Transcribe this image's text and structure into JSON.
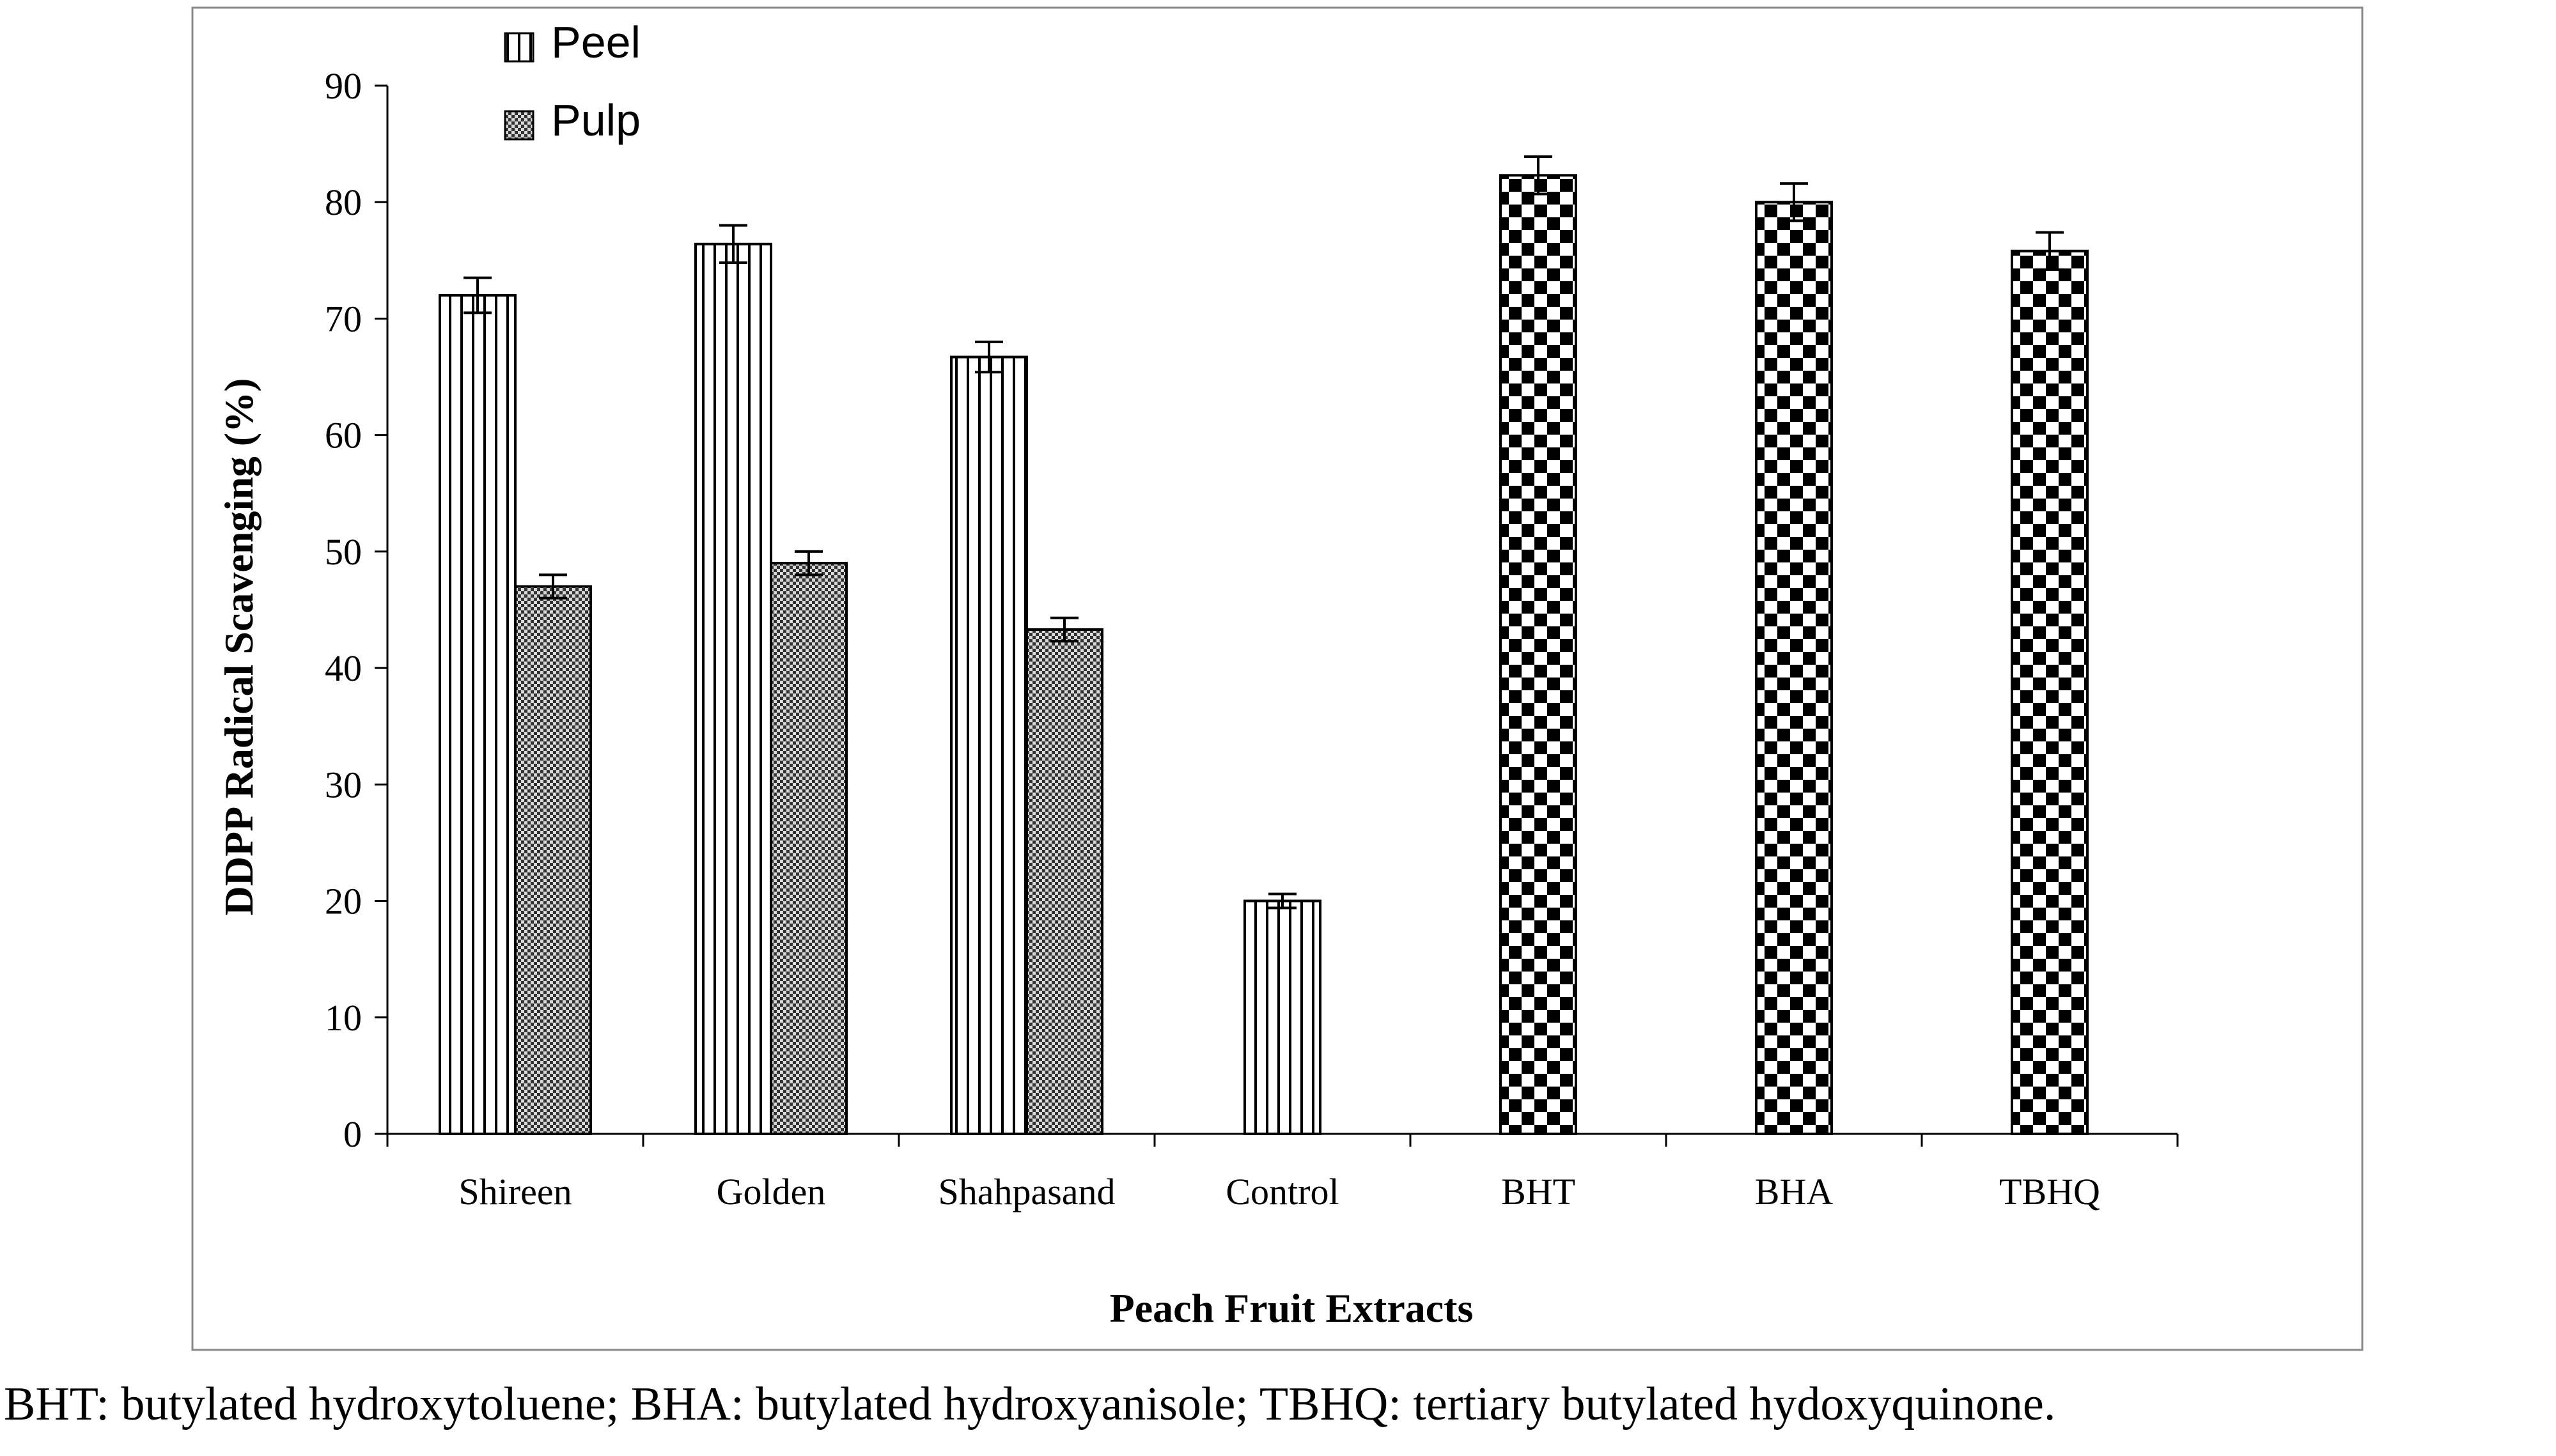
{
  "chart_data": {
    "type": "bar",
    "xlabel": "Peach Fruit Extracts",
    "ylabel": "DDPP Radical Scavenging (%)",
    "ylim": [
      0,
      90
    ],
    "yticks": [
      0,
      10,
      20,
      30,
      40,
      50,
      60,
      70,
      80,
      90
    ],
    "categories": [
      "Shireen",
      "Golden",
      "Shahpasand",
      "Control",
      "BHT",
      "BHA",
      "TBHQ"
    ],
    "series": [
      {
        "name": "Peel",
        "pattern": "vertical-stripes",
        "values": [
          72,
          76.4,
          66.7,
          20,
          null,
          null,
          null
        ],
        "errors": [
          1.5,
          1.6,
          1.3,
          0.6,
          null,
          null,
          null
        ]
      },
      {
        "name": "Pulp",
        "pattern": "fine-checker",
        "values": [
          47,
          49,
          43.3,
          null,
          null,
          null,
          null
        ],
        "errors": [
          1.0,
          1.0,
          1.0,
          null,
          null,
          null,
          null
        ]
      },
      {
        "name": "",
        "pattern": "checkerboard",
        "values": [
          null,
          null,
          null,
          null,
          82.3,
          80,
          75.8
        ],
        "errors": [
          null,
          null,
          null,
          null,
          1.6,
          1.6,
          1.6
        ]
      }
    ],
    "legend": "top-left",
    "grid": false
  },
  "footnote": "BHT: butylated hydroxytoluene; BHA: butylated hydroxyanisole; TBHQ: tertiary butylated hydoxyquinone."
}
